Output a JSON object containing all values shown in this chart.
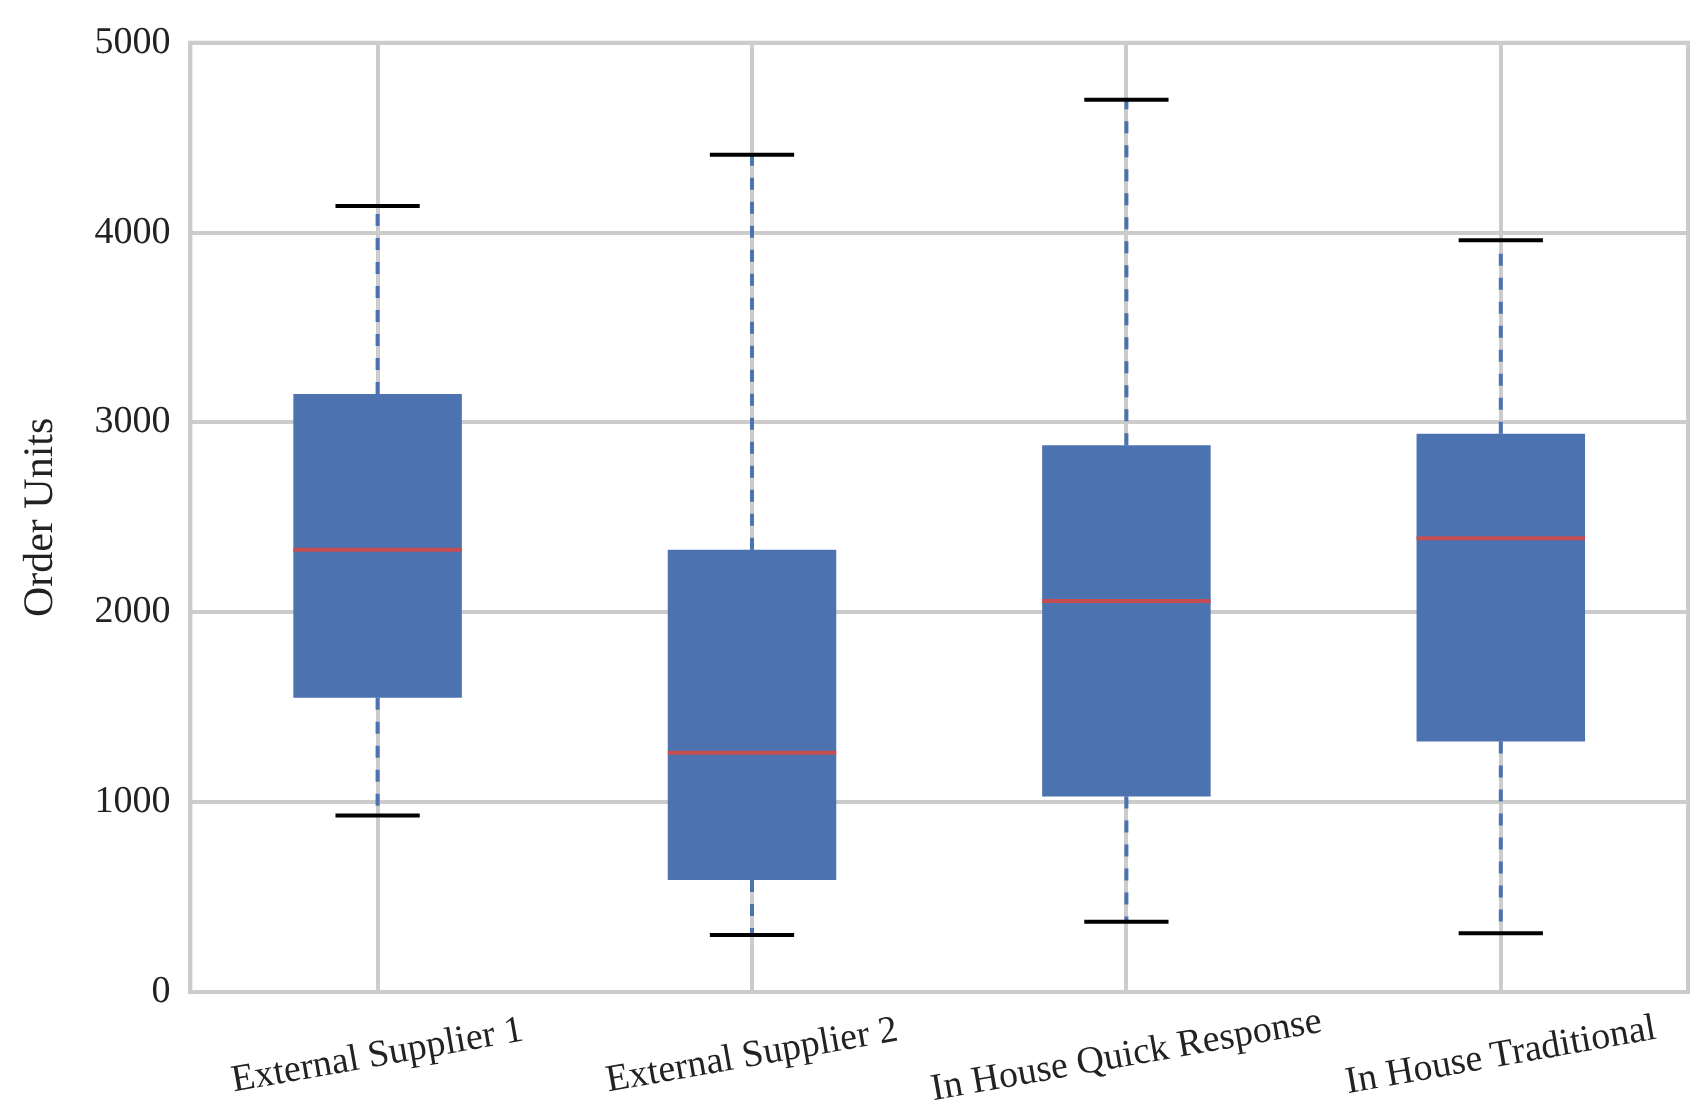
{
  "chart_data": {
    "type": "box",
    "categories": [
      "External Supplier 1",
      "External Supplier 2",
      "In House Quick Response",
      "In House Traditional"
    ],
    "series": [
      {
        "color": "#4c72b0",
        "boxes": [
          {
            "low": 930,
            "q1": 1550,
            "median": 2330,
            "q3": 3150,
            "high": 4140
          },
          {
            "low": 300,
            "q1": 590,
            "median": 1260,
            "q3": 2330,
            "high": 4410
          },
          {
            "low": 370,
            "q1": 1030,
            "median": 2060,
            "q3": 2880,
            "high": 4700
          },
          {
            "low": 310,
            "q1": 1320,
            "median": 2390,
            "q3": 2940,
            "high": 3960
          }
        ]
      }
    ],
    "ylabel": "Order Units",
    "ylim": [
      0,
      5000
    ],
    "yticks": [
      0,
      1000,
      2000,
      3000,
      4000,
      5000
    ],
    "grid": true,
    "legend": false,
    "line_style": "dashed"
  }
}
